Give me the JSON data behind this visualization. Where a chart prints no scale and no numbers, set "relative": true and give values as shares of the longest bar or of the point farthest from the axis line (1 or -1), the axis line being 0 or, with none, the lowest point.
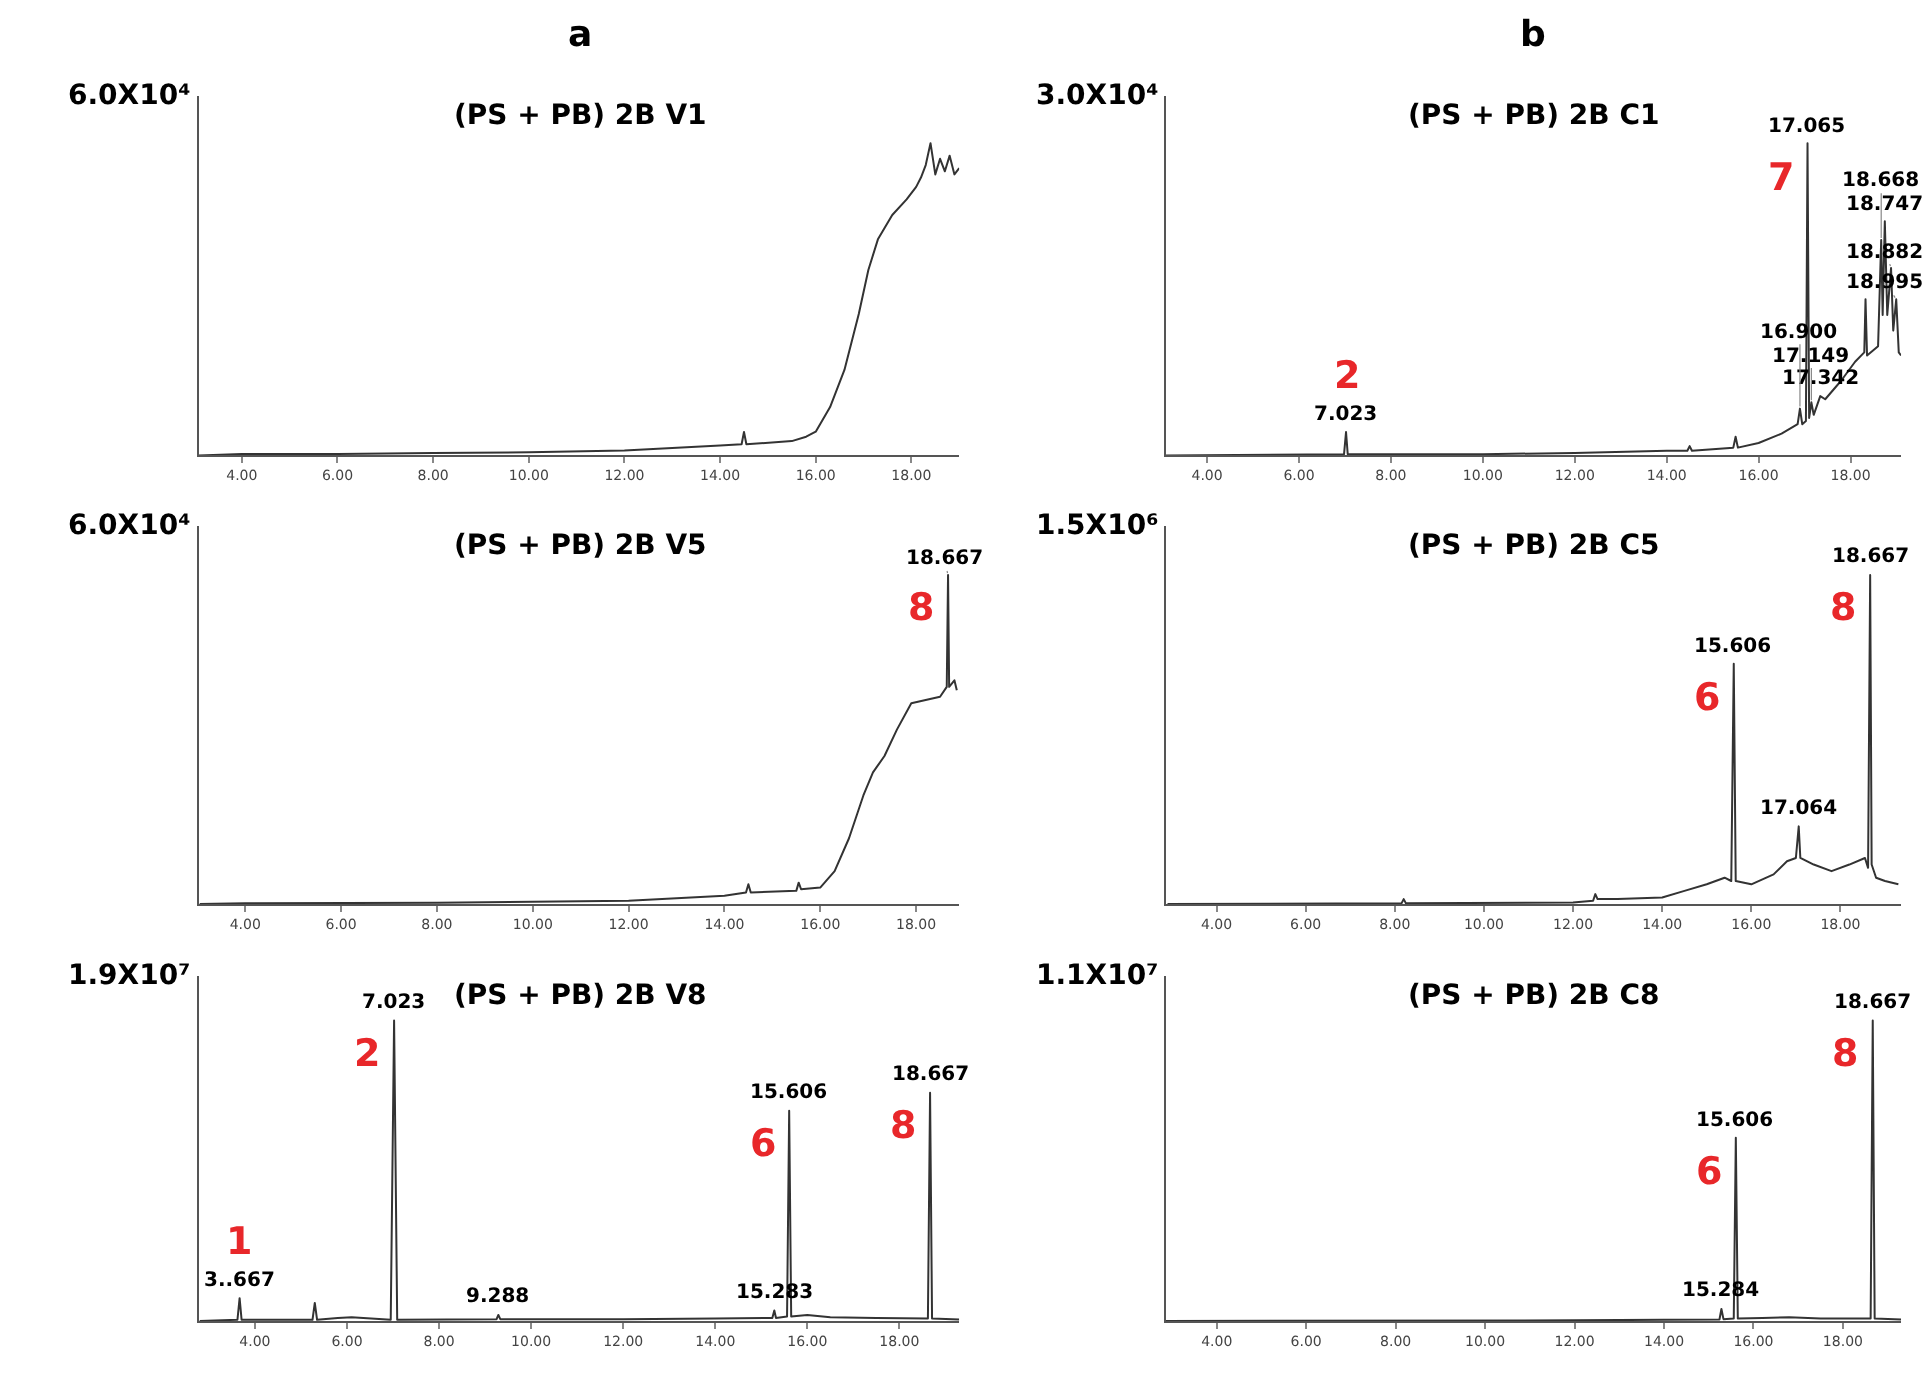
{
  "chart_data": [
    {
      "type": "line",
      "title": "(PS + PB) 2B V1",
      "ylabel": "6.0X10⁴",
      "relative": true,
      "annotations": [
        "a"
      ],
      "xlim": [
        3.1,
        19.0
      ],
      "xticks": [
        {
          "value": 4,
          "label": "4.00"
        },
        {
          "value": 6,
          "label": "6.00"
        },
        {
          "value": 8,
          "label": "8.00"
        },
        {
          "value": 10,
          "label": "10.00"
        },
        {
          "value": 12,
          "label": "12.00"
        },
        {
          "value": 14,
          "label": "14.00"
        },
        {
          "value": 16,
          "label": "16.00"
        },
        {
          "value": 18,
          "label": "18.00"
        }
      ],
      "x": [
        3.1,
        4,
        6,
        8,
        10,
        12,
        14,
        14.45,
        14.5,
        14.55,
        15.5,
        15.8,
        16.0,
        16.3,
        16.6,
        16.9,
        17.1,
        17.3,
        17.6,
        17.9,
        18.1,
        18.2,
        18.3,
        18.4,
        18.5,
        18.6,
        18.7,
        18.8,
        18.9,
        19.0
      ],
      "series": [
        {
          "color": "#333333",
          "values": [
            0,
            0.005,
            0.005,
            0.008,
            0.01,
            0.016,
            0.032,
            0.036,
            0.075,
            0.036,
            0.046,
            0.06,
            0.076,
            0.155,
            0.274,
            0.453,
            0.594,
            0.692,
            0.77,
            0.82,
            0.86,
            0.89,
            0.93,
            1.0,
            0.9,
            0.95,
            0.91,
            0.96,
            0.9,
            0.92
          ]
        }
      ]
    },
    {
      "type": "line",
      "title": "(PS + PB) 2B C1",
      "ylabel": "3.0X10⁴",
      "relative": true,
      "annotations": [
        "b",
        {
          "text": "17.065",
          "x": 17.065,
          "y": 1.0
        },
        {
          "text": "7",
          "x": 17.065,
          "y": 1.0
        },
        {
          "text": "2",
          "x": 7.023,
          "y": 0.075
        },
        {
          "text": "7.023",
          "x": 7.023,
          "y": 0.075
        },
        {
          "text": "18.747",
          "x": 18.747,
          "y": 0.75
        },
        {
          "text": "18.668",
          "x": 18.668,
          "y": 0.69
        },
        {
          "text": "18.882",
          "x": 18.882,
          "y": 0.6
        },
        {
          "text": "18.995",
          "x": 18.995,
          "y": 0.5
        },
        {
          "text": "17.342",
          "x": 17.342,
          "y": 0.19
        },
        {
          "text": "17.149",
          "x": 17.149,
          "y": 0.17
        },
        {
          "text": "16.900",
          "x": 16.9,
          "y": 0.15
        }
      ],
      "xlim": [
        3.1,
        19.1
      ],
      "xticks": [
        {
          "value": 4,
          "label": "4.00"
        },
        {
          "value": 6,
          "label": "6.00"
        },
        {
          "value": 8,
          "label": "8.00"
        },
        {
          "value": 10,
          "label": "10.00"
        },
        {
          "value": 12,
          "label": "12.00"
        },
        {
          "value": 14,
          "label": "14.00"
        },
        {
          "value": 16,
          "label": "16.00"
        },
        {
          "value": 18,
          "label": "18.00"
        }
      ],
      "x": [
        3.1,
        6.98,
        7.023,
        7.06,
        10,
        12,
        14,
        14.45,
        14.5,
        14.55,
        15.45,
        15.5,
        15.55,
        16.0,
        16.5,
        16.85,
        16.9,
        16.95,
        17.03,
        17.065,
        17.1,
        17.149,
        17.2,
        17.342,
        17.45,
        17.8,
        18.1,
        18.3,
        18.327,
        18.36,
        18.6,
        18.668,
        18.7,
        18.747,
        18.8,
        18.882,
        18.93,
        18.995,
        19.05,
        19.1
      ],
      "series": [
        {
          "color": "#333333",
          "values": [
            0,
            0.004,
            0.075,
            0.004,
            0.004,
            0.008,
            0.015,
            0.015,
            0.03,
            0.015,
            0.025,
            0.06,
            0.025,
            0.04,
            0.07,
            0.1,
            0.15,
            0.1,
            0.11,
            1.0,
            0.12,
            0.17,
            0.13,
            0.19,
            0.18,
            0.24,
            0.3,
            0.33,
            0.5,
            0.32,
            0.35,
            0.69,
            0.45,
            0.75,
            0.45,
            0.6,
            0.4,
            0.5,
            0.33,
            0.32
          ]
        }
      ]
    },
    {
      "type": "line",
      "title": "(PS + PB) 2B V5",
      "ylabel": "6.0X10⁴",
      "relative": true,
      "annotations": [
        {
          "text": "18.667",
          "x": 18.667,
          "y": 1.0
        },
        {
          "text": "8",
          "x": 18.667,
          "y": 1.0
        }
      ],
      "xlim": [
        3.03,
        18.9
      ],
      "xticks": [
        {
          "value": 4,
          "label": "4.00"
        },
        {
          "value": 6,
          "label": "6.00"
        },
        {
          "value": 8,
          "label": "8.00"
        },
        {
          "value": 10,
          "label": "10.00"
        },
        {
          "value": 12,
          "label": "12.00"
        },
        {
          "value": 14,
          "label": "14.00"
        },
        {
          "value": 16,
          "label": "16.00"
        },
        {
          "value": 18,
          "label": "18.00"
        }
      ],
      "x": [
        3.05,
        4,
        8,
        12,
        14,
        14.45,
        14.5,
        14.55,
        15.5,
        15.55,
        15.6,
        16.0,
        16.3,
        16.6,
        16.9,
        17.1,
        17.34,
        17.6,
        17.9,
        18.2,
        18.5,
        18.64,
        18.667,
        18.69,
        18.8,
        18.85
      ],
      "series": [
        {
          "color": "#333333",
          "values": [
            0,
            0.002,
            0.004,
            0.01,
            0.025,
            0.035,
            0.06,
            0.035,
            0.04,
            0.065,
            0.045,
            0.05,
            0.1,
            0.2,
            0.33,
            0.4,
            0.45,
            0.53,
            0.61,
            0.62,
            0.63,
            0.66,
            1.0,
            0.66,
            0.68,
            0.65
          ]
        }
      ]
    },
    {
      "type": "line",
      "title": "(PS + PB) 2B C5",
      "ylabel": "1.5X10⁶",
      "relative": true,
      "annotations": [
        {
          "text": "15.606",
          "x": 15.606,
          "y": 0.73
        },
        {
          "text": "18.667",
          "x": 18.667,
          "y": 1.0
        },
        {
          "text": "6",
          "x": 15.606,
          "y": 0.73
        },
        {
          "text": "8",
          "x": 18.667,
          "y": 1.0
        },
        {
          "text": "17.064",
          "x": 17.064,
          "y": 0.236
        }
      ],
      "xlim": [
        2.86,
        19.36
      ],
      "xticks": [
        {
          "value": 4,
          "label": "4.00"
        },
        {
          "value": 6,
          "label": "6.00"
        },
        {
          "value": 8,
          "label": "8.00"
        },
        {
          "value": 10,
          "label": "10.00"
        },
        {
          "value": 12,
          "label": "12.00"
        },
        {
          "value": 14,
          "label": "14.00"
        },
        {
          "value": 16,
          "label": "16.00"
        },
        {
          "value": 18,
          "label": "18.00"
        }
      ],
      "x": [
        2.9,
        8.15,
        8.2,
        8.25,
        12.0,
        12.45,
        12.5,
        12.55,
        13.0,
        14.0,
        14.5,
        15.0,
        15.4,
        15.55,
        15.606,
        15.65,
        16.0,
        16.5,
        16.8,
        17.0,
        17.064,
        17.1,
        17.4,
        17.8,
        18.2,
        18.55,
        18.62,
        18.667,
        18.7,
        18.8,
        19.0,
        19.3
      ],
      "series": [
        {
          "color": "#333333",
          "values": [
            0,
            0.002,
            0.015,
            0.002,
            0.005,
            0.01,
            0.03,
            0.015,
            0.015,
            0.02,
            0.04,
            0.06,
            0.08,
            0.07,
            0.73,
            0.07,
            0.06,
            0.09,
            0.13,
            0.14,
            0.236,
            0.14,
            0.12,
            0.1,
            0.12,
            0.14,
            0.11,
            1.0,
            0.12,
            0.08,
            0.07,
            0.06
          ]
        }
      ]
    },
    {
      "type": "line",
      "title": "(PS + PB) 2B V8",
      "ylabel": "1.9X10⁷",
      "relative": true,
      "annotations": [
        {
          "text": "7.023",
          "x": 7.023,
          "y": 1.0
        },
        {
          "text": "2",
          "x": 7.023,
          "y": 1.0
        },
        {
          "text": "15.606",
          "x": 15.606,
          "y": 0.7
        },
        {
          "text": "6",
          "x": 15.606,
          "y": 0.7
        },
        {
          "text": "18.667",
          "x": 18.667,
          "y": 0.76
        },
        {
          "text": "8",
          "x": 18.667,
          "y": 0.76
        },
        {
          "text": "1",
          "x": 3.667,
          "y": 0.076
        },
        {
          "text": "3..667",
          "x": 3.667,
          "y": 0.076
        },
        {
          "text": "9.288",
          "x": 9.288,
          "y": 0.02
        },
        {
          "text": "15.283",
          "x": 15.283,
          "y": 0.035
        }
      ],
      "xlim": [
        2.78,
        19.3
      ],
      "xticks": [
        {
          "value": 4,
          "label": "4.00"
        },
        {
          "value": 6,
          "label": "6.00"
        },
        {
          "value": 8,
          "label": "8.00"
        },
        {
          "value": 10,
          "label": "10.00"
        },
        {
          "value": 12,
          "label": "12.00"
        },
        {
          "value": 14,
          "label": "14.00"
        },
        {
          "value": 16,
          "label": "16.00"
        },
        {
          "value": 18,
          "label": "18.00"
        }
      ],
      "x": [
        2.8,
        3.62,
        3.667,
        3.71,
        5.25,
        5.3,
        5.35,
        5.8,
        6.1,
        6.95,
        7.023,
        7.09,
        9.25,
        9.288,
        9.33,
        12.0,
        14.0,
        15.24,
        15.283,
        15.32,
        15.56,
        15.606,
        15.65,
        16.0,
        16.5,
        17.5,
        18.62,
        18.667,
        18.71,
        19.3
      ],
      "series": [
        {
          "color": "#333333",
          "values": [
            0,
            0.004,
            0.076,
            0.004,
            0.004,
            0.06,
            0.004,
            0.01,
            0.012,
            0.004,
            1.0,
            0.004,
            0.006,
            0.02,
            0.006,
            0.006,
            0.008,
            0.01,
            0.035,
            0.01,
            0.015,
            0.7,
            0.015,
            0.02,
            0.012,
            0.01,
            0.008,
            0.76,
            0.008,
            0.005
          ]
        }
      ]
    },
    {
      "type": "line",
      "title": "(PS + PB) 2B C8",
      "ylabel": "1.1X10⁷",
      "relative": true,
      "annotations": [
        {
          "text": "18.667",
          "x": 18.667,
          "y": 1.0
        },
        {
          "text": "8",
          "x": 18.667,
          "y": 1.0
        },
        {
          "text": "15.606",
          "x": 15.606,
          "y": 0.61
        },
        {
          "text": "6",
          "x": 15.606,
          "y": 0.61
        },
        {
          "text": "15.284",
          "x": 15.284,
          "y": 0.04
        }
      ],
      "xlim": [
        2.86,
        19.3
      ],
      "xticks": [
        {
          "value": 4,
          "label": "4.00"
        },
        {
          "value": 6,
          "label": "6.00"
        },
        {
          "value": 8,
          "label": "8.00"
        },
        {
          "value": 10,
          "label": "10.00"
        },
        {
          "value": 12,
          "label": "12.00"
        },
        {
          "value": 14,
          "label": "14.00"
        },
        {
          "value": 16,
          "label": "16.00"
        },
        {
          "value": 18,
          "label": "18.00"
        }
      ],
      "x": [
        2.86,
        12,
        14,
        15.24,
        15.284,
        15.33,
        15.56,
        15.606,
        15.65,
        16.2,
        16.8,
        17.5,
        18.62,
        18.667,
        18.71,
        19.3
      ],
      "series": [
        {
          "color": "#333333",
          "values": [
            0,
            0.002,
            0.004,
            0.005,
            0.04,
            0.006,
            0.008,
            0.61,
            0.008,
            0.01,
            0.012,
            0.008,
            0.008,
            1.0,
            0.008,
            0.005
          ]
        }
      ]
    }
  ]
}
